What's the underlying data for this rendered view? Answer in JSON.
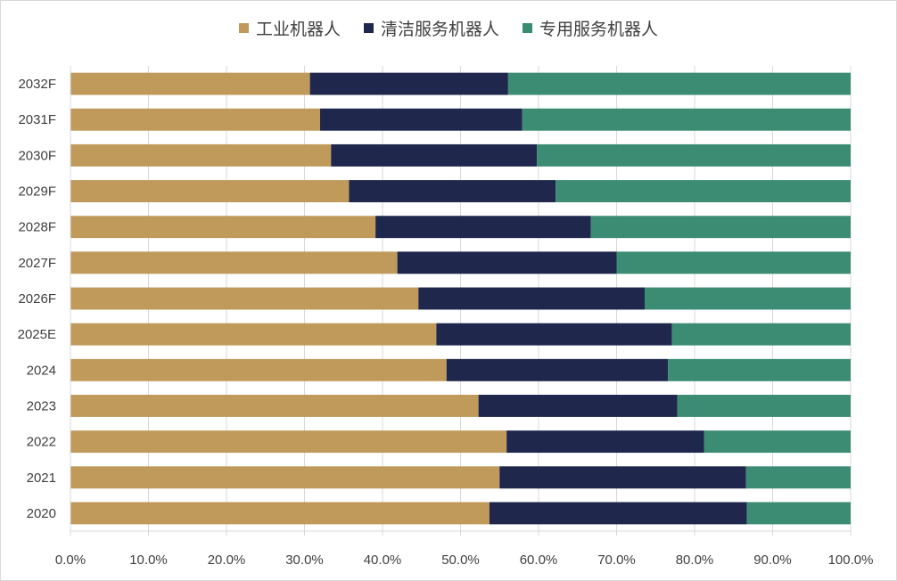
{
  "chart_data": {
    "type": "bar",
    "orientation": "horizontal",
    "stacked": "percent",
    "categories": [
      "2032F",
      "2031F",
      "2030F",
      "2029F",
      "2028F",
      "2027F",
      "2026F",
      "2025E",
      "2024",
      "2023",
      "2022",
      "2021",
      "2020"
    ],
    "series": [
      {
        "name": "工业机器人",
        "color": "#c09a5b",
        "values": [
          30.7,
          32.0,
          33.4,
          35.7,
          39.1,
          41.9,
          44.6,
          46.9,
          48.2,
          52.3,
          55.9,
          55.0,
          53.7
        ]
      },
      {
        "name": "清洁服务机器人",
        "color": "#1f274d",
        "values": [
          25.4,
          25.9,
          26.4,
          26.5,
          27.6,
          28.1,
          29.0,
          30.2,
          28.4,
          25.5,
          25.3,
          31.6,
          33.0
        ]
      },
      {
        "name": "专用服务机器人",
        "color": "#3b8c73",
        "values": [
          43.9,
          42.1,
          40.2,
          37.8,
          33.3,
          30.0,
          26.4,
          22.9,
          23.4,
          22.2,
          18.8,
          13.4,
          13.3
        ]
      }
    ],
    "x_ticks": [
      "0.0%",
      "10.0%",
      "20.0%",
      "30.0%",
      "40.0%",
      "50.0%",
      "60.0%",
      "70.0%",
      "80.0%",
      "90.0%",
      "100.0%"
    ],
    "xlim": [
      0,
      100
    ],
    "grid": "vertical",
    "legend_position": "top"
  }
}
